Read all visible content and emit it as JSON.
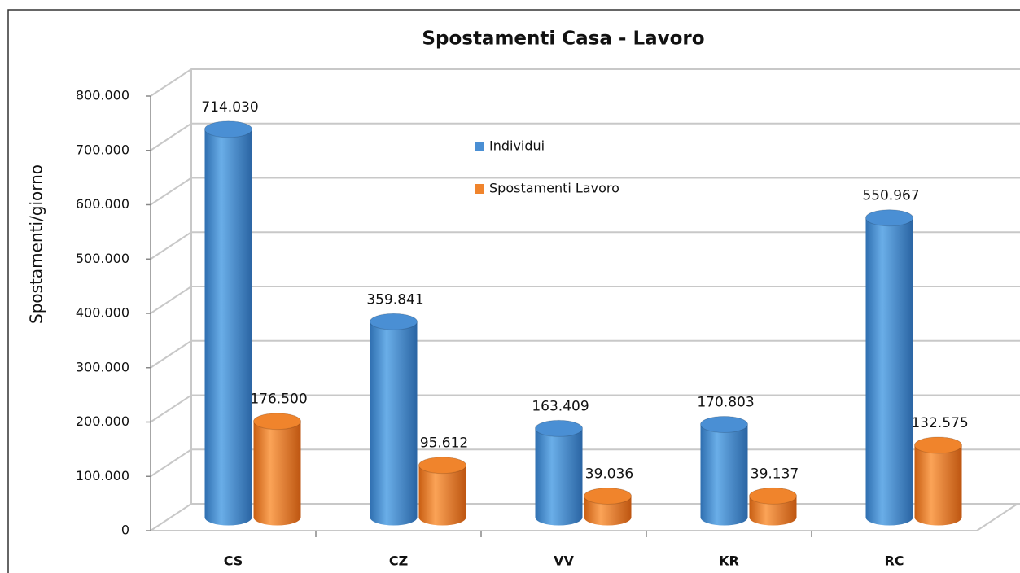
{
  "chart_data": {
    "type": "bar",
    "title": "Spostamenti Casa - Lavoro",
    "y_label": "Spostamenti/giorno",
    "categories": [
      "CS",
      "CZ",
      "VV",
      "KR",
      "RC"
    ],
    "series": [
      {
        "name": "Individui",
        "color": "#4a8fd4",
        "values": [
          714030,
          359841,
          163409,
          170803,
          550967
        ],
        "value_labels": [
          "714.030",
          "359.841",
          "163.409",
          "170.803",
          "550.967"
        ]
      },
      {
        "name": "Spostamenti Lavoro",
        "color": "#f0842c",
        "values": [
          176500,
          95612,
          39036,
          39137,
          132575
        ],
        "value_labels": [
          "176.500",
          "95.612",
          "39.036",
          "39.137",
          "132.575"
        ]
      }
    ],
    "ylim": [
      0,
      800000
    ],
    "yticks": [
      0,
      {
        "value": 100000,
        "label": "100.000"
      },
      {
        "value": 200000,
        "label": "200.000"
      },
      {
        "value": 300000,
        "label": "300.000"
      },
      {
        "value": 400000,
        "label": "400.000"
      },
      {
        "value": 500000,
        "label": "500.000"
      },
      {
        "value": 600000,
        "label": "600.000"
      },
      {
        "value": 700000,
        "label": "700.000"
      },
      {
        "value": 800000,
        "label": "800.000"
      }
    ],
    "grid": true
  }
}
